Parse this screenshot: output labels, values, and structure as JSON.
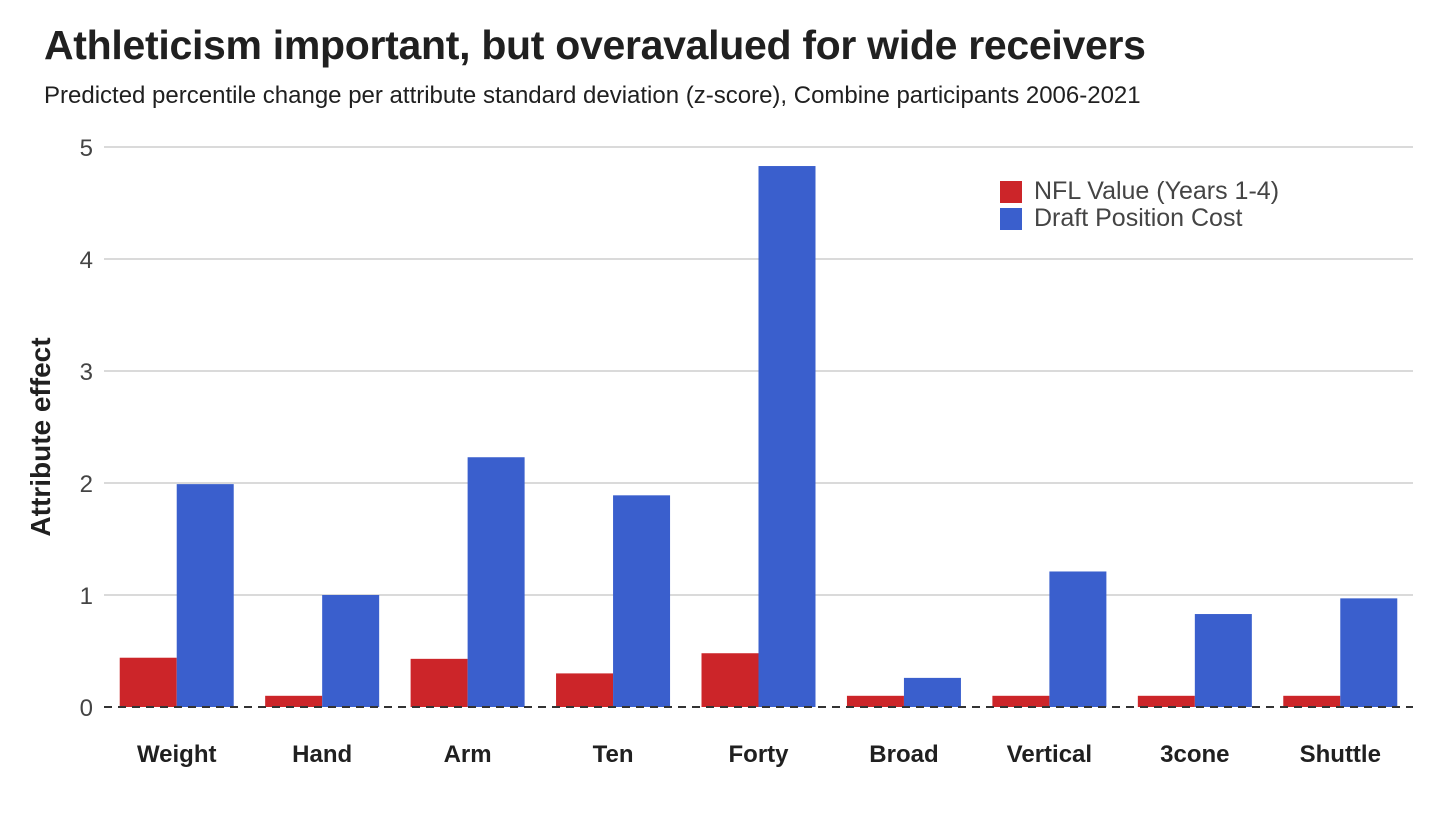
{
  "chart_data": {
    "type": "bar",
    "title": "Athleticism important, but overavalued for wide receivers",
    "subtitle": "Predicted percentile change per attribute standard deviation (z-score), Combine participants 2006-2021",
    "xlabel": "",
    "ylabel": "Attribute effect",
    "ylim": [
      0,
      5
    ],
    "yticks": [
      "0",
      "1",
      "2",
      "3",
      "4",
      "5"
    ],
    "grid": true,
    "legend_position": "top-right",
    "categories": [
      "Weight",
      "Hand",
      "Arm",
      "Ten",
      "Forty",
      "Broad",
      "Vertical",
      "3cone",
      "Shuttle"
    ],
    "series": [
      {
        "name": "NFL Value (Years 1-4)",
        "color": "#cc2529",
        "values": [
          0.44,
          0.1,
          0.43,
          0.3,
          0.48,
          0.1,
          0.1,
          0.1,
          0.1
        ]
      },
      {
        "name": "Draft Position Cost",
        "color": "#3a5fcd",
        "values": [
          1.99,
          1.0,
          2.23,
          1.89,
          4.83,
          0.26,
          1.21,
          0.83,
          0.97
        ]
      }
    ]
  }
}
